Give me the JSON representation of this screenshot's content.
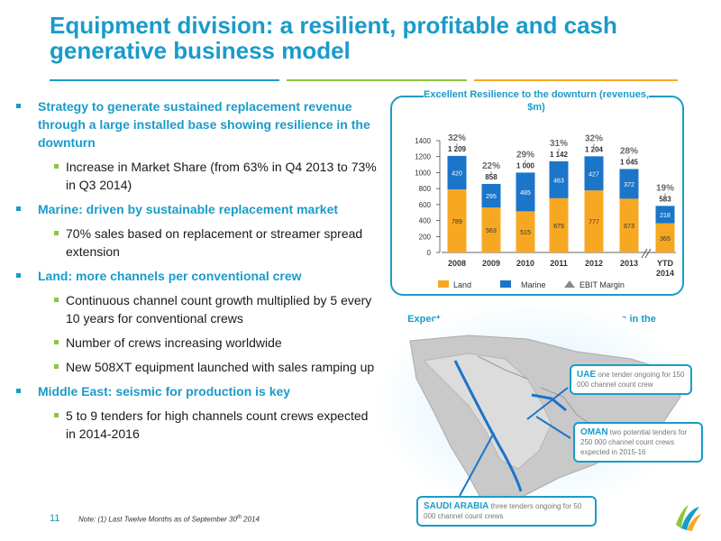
{
  "title": "Equipment division: a resilient, profitable and cash generative business model",
  "bullets": [
    {
      "level": 1,
      "text": "Strategy to generate sustained replacement revenue through a large installed base showing resilience in the downturn"
    },
    {
      "level": 2,
      "text": "Increase in Market Share (from 63% in Q4 2013 to 73% in Q3 2014)"
    },
    {
      "level": 1,
      "text": "Marine: driven by sustainable replacement market"
    },
    {
      "level": 2,
      "text": "70% sales based on replacement or streamer spread extension"
    },
    {
      "level": 1,
      "text": "Land: more channels per conventional crew"
    },
    {
      "level": 2,
      "text": "Continuous channel count growth multiplied by 5 every 10 years for conventional crews"
    },
    {
      "level": 2,
      "text": "Number of crews increasing worldwide"
    },
    {
      "level": 2,
      "text": "New 508XT equipment launched with sales ramping up"
    },
    {
      "level": 1,
      "text": "Middle East: seismic for production is key"
    },
    {
      "level": 2,
      "text": "5 to 9 tenders for high channels count crews expected in 2014-2016"
    }
  ],
  "chart_data": {
    "type": "bar",
    "title": "Excellent Resilience to the downturn (revenues, $m)",
    "categories": [
      "2008",
      "2009",
      "2010",
      "2011",
      "2012",
      "2013",
      "YTD 2014"
    ],
    "series": [
      {
        "name": "Land",
        "color": "#f7a823",
        "values": [
          789,
          563,
          515,
          679,
          777,
          673,
          365
        ]
      },
      {
        "name": "Marine",
        "color": "#1b75c9",
        "values": [
          420,
          295,
          485,
          463,
          427,
          372,
          218
        ]
      }
    ],
    "totals": [
      "1 209",
      "858",
      "1 000",
      "1 142",
      "1 204",
      "1 045",
      "583"
    ],
    "ebit_margin": [
      "32%",
      "22%",
      "29%",
      "31%",
      "32%",
      "28%",
      "19%"
    ],
    "ebit_label": "EBIT Margin",
    "ylim": [
      0,
      1400
    ],
    "yticks": [
      0,
      200,
      400,
      600,
      800,
      1000,
      1200,
      1400
    ]
  },
  "map": {
    "title": "Expected tenders of high channel count crews in the Middle East",
    "callouts": [
      {
        "name": "UAE",
        "text": "one tender ongoing for 150 000 channel count crew"
      },
      {
        "name": "OMAN",
        "text": "two potential tenders for 250 000 channel count crews expected in 2015-16"
      },
      {
        "name": "SAUDI ARABIA",
        "text": "three tenders ongoing for 50 000 channel count crews"
      }
    ]
  },
  "footer": {
    "page": "11",
    "note_prefix": "Note: (1) Last Twelve Months as of September 30",
    "note_sup": "th",
    "note_suffix": " 2014"
  },
  "colors": {
    "accent": "#1a9bc9",
    "land": "#f7a823",
    "marine": "#1b75c9",
    "green": "#8cc63f"
  }
}
